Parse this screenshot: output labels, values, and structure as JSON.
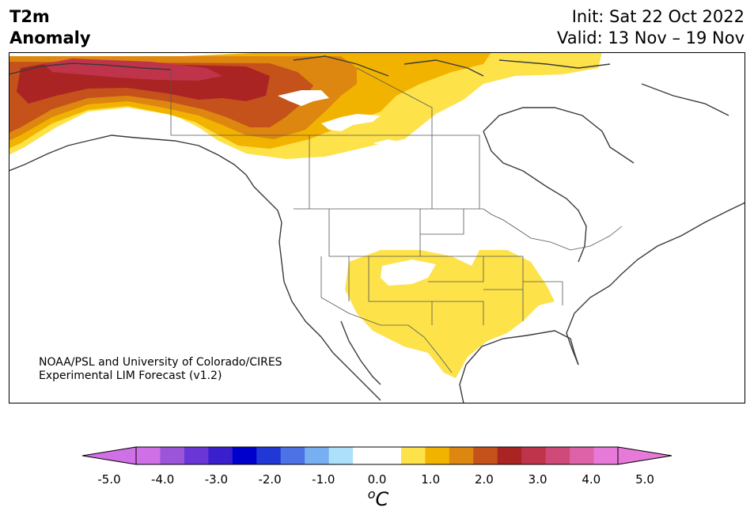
{
  "header": {
    "variable_line1": "T2m",
    "variable_line2": "Anomaly",
    "init": "Init: Sat 22 Oct 2022",
    "valid": "Valid: 13 Nov – 19 Nov"
  },
  "map": {
    "region": "North America",
    "anomaly_regions": [
      {
        "area": "Alaska",
        "max_anomaly_c": 4.0
      },
      {
        "area": "Yukon / Northwest Territories",
        "max_anomaly_c": 3.0
      },
      {
        "area": "Northern Canada",
        "max_anomaly_c": 1.5
      },
      {
        "area": "Southwestern / Southern United States",
        "max_anomaly_c": 1.0
      }
    ]
  },
  "credit": {
    "line1": "NOAA/PSL and University of Colorado/CIRES",
    "line2": "Experimental LIM Forecast (v1.2)"
  },
  "colorbar": {
    "unit_symbol": "C",
    "unit_superscript": "o",
    "min_label": "-5.0",
    "max_label": "5.0",
    "tick_labels": [
      "-5.0",
      "-4.0",
      "-3.0",
      "-2.0",
      "-1.0",
      "0.0",
      "1.0",
      "2.0",
      "3.0",
      "4.0",
      "5.0"
    ],
    "colors": [
      "#d070e6",
      "#9b55d9",
      "#6a37d6",
      "#3a1fcc",
      "#0000cc",
      "#2138d6",
      "#4d72e6",
      "#78aff0",
      "#ade0fa",
      "#ffffff",
      "#ffffff",
      "#fde24a",
      "#f2b300",
      "#de8710",
      "#c4521a",
      "#ab2424",
      "#bf344a",
      "#cf4a78",
      "#dd62a8",
      "#e77ad8"
    ],
    "under_color": "#d070e6",
    "over_color": "#e77ad8"
  }
}
